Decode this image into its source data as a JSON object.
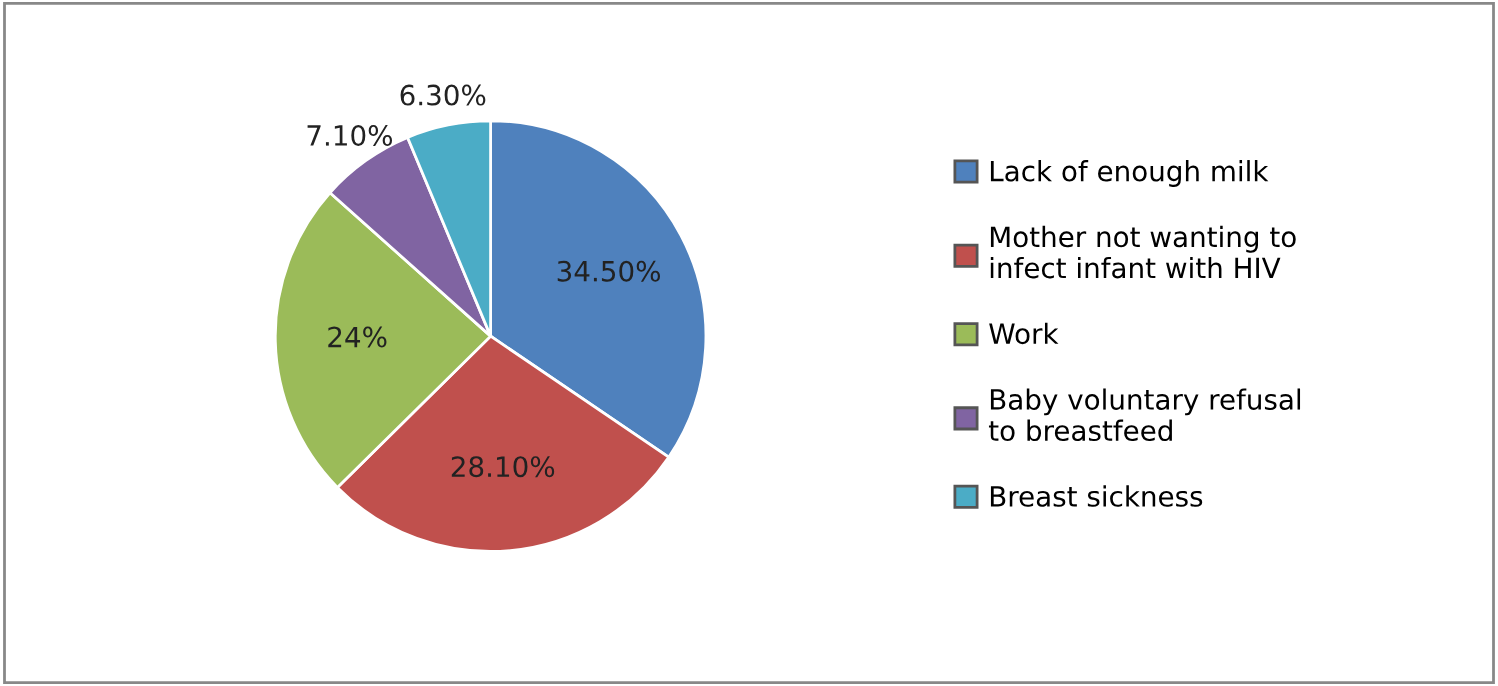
{
  "chart_data": {
    "type": "pie",
    "categories": [
      "Lack of enough milk",
      "Mother not wanting to infect infant with HIV",
      "Work",
      "Baby voluntary refusal to breastfeed",
      "Breast sickness"
    ],
    "values": [
      34.5,
      28.1,
      24,
      7.1,
      6.3
    ],
    "value_labels": [
      "34.50%",
      "28.10%",
      "24%",
      "7.10%",
      "6.30%"
    ],
    "colors": [
      "#4f81bd",
      "#c0504d",
      "#9bbb59",
      "#8064a2",
      "#4bacc6"
    ],
    "legend": "right"
  }
}
